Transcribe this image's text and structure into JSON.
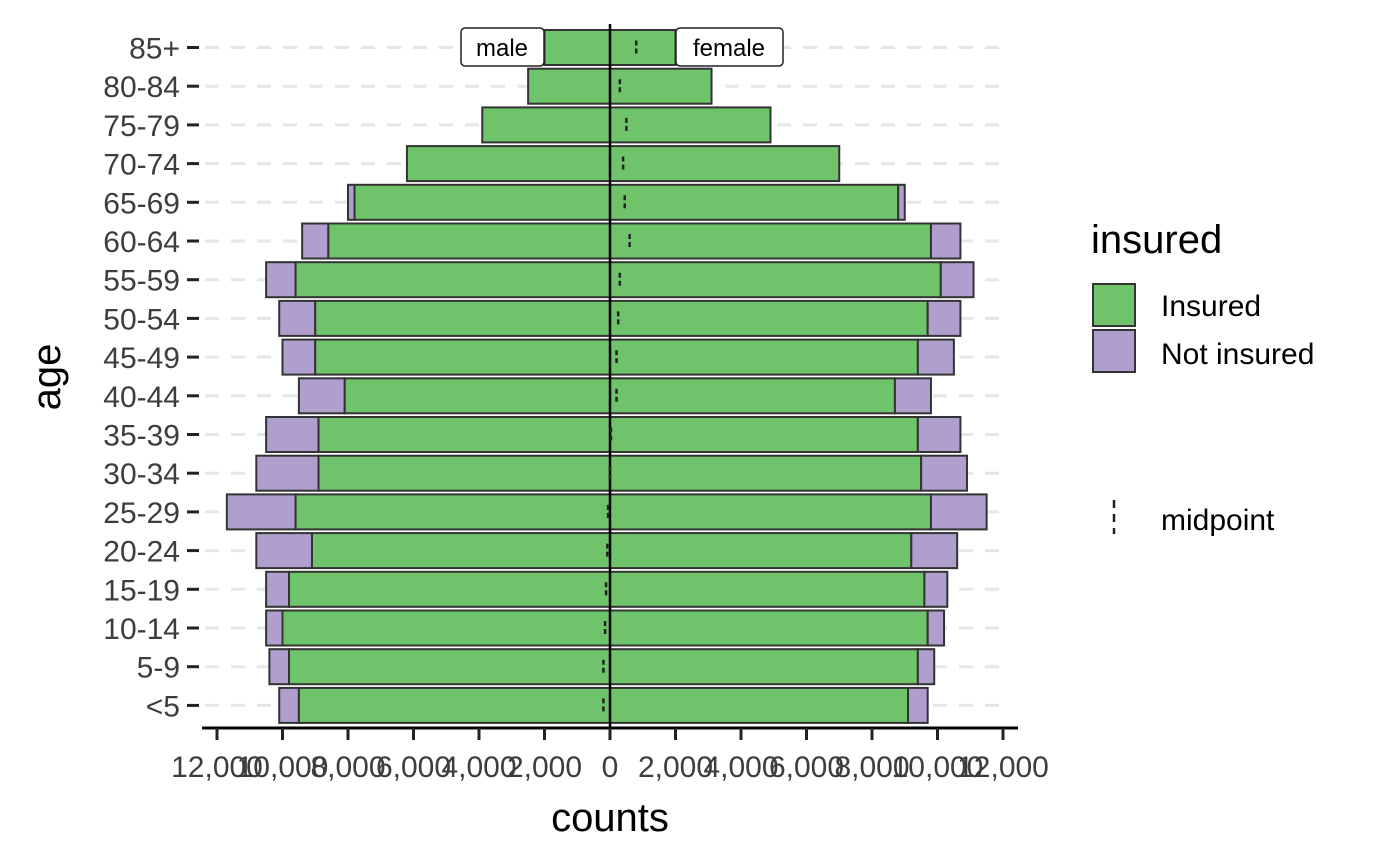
{
  "chart_data": {
    "type": "bar",
    "orientation": "horizontal-diverging",
    "xlabel": "counts",
    "ylabel": "age",
    "xlim": [
      -12000,
      12000
    ],
    "x_ticks": [
      -12000,
      -10000,
      -8000,
      -6000,
      -4000,
      -2000,
      0,
      2000,
      4000,
      6000,
      8000,
      10000,
      12000
    ],
    "x_tick_labels": [
      "12,000",
      "10,000",
      "8,000",
      "6,000",
      "4,000",
      "2,000",
      "0",
      "2,000",
      "4,000",
      "6,000",
      "8,000",
      "10,000",
      "12,000"
    ],
    "categories": [
      "<5",
      "5-9",
      "10-14",
      "15-19",
      "20-24",
      "25-29",
      "30-34",
      "35-39",
      "40-44",
      "45-49",
      "50-54",
      "55-59",
      "60-64",
      "65-69",
      "70-74",
      "75-79",
      "80-84",
      "85+"
    ],
    "group_labels": {
      "left": "male",
      "right": "female"
    },
    "series": [
      {
        "name": "Insured",
        "color": "#6fc46b",
        "male": [
          9500,
          9800,
          10000,
          9800,
          9100,
          9600,
          8900,
          8900,
          8100,
          9000,
          9000,
          9600,
          8600,
          7800,
          6200,
          3900,
          2500,
          2000
        ],
        "female": [
          9100,
          9400,
          9700,
          9600,
          9200,
          9800,
          9500,
          9400,
          8700,
          9400,
          9700,
          10100,
          9800,
          8800,
          7000,
          4900,
          3100,
          2000
        ]
      },
      {
        "name": "Not insured",
        "color": "#b09fce",
        "male": [
          600,
          600,
          500,
          700,
          1700,
          2100,
          1900,
          1600,
          1400,
          1000,
          1100,
          900,
          800,
          200,
          0,
          0,
          0,
          0
        ],
        "female": [
          600,
          500,
          500,
          700,
          1400,
          1700,
          1400,
          1300,
          1100,
          1100,
          1000,
          1000,
          900,
          200,
          0,
          0,
          0,
          0
        ]
      }
    ],
    "midpoint": [
      -200,
      -200,
      -150,
      -120,
      -80,
      -60,
      0,
      30,
      200,
      200,
      250,
      300,
      600,
      450,
      400,
      500,
      300,
      800
    ],
    "legend": {
      "title": "insured",
      "entries": [
        "Insured",
        "Not insured"
      ],
      "midpoint_label": "midpoint",
      "position": "right"
    },
    "grid": {
      "horizontal": "dashed",
      "vertical": false
    }
  }
}
